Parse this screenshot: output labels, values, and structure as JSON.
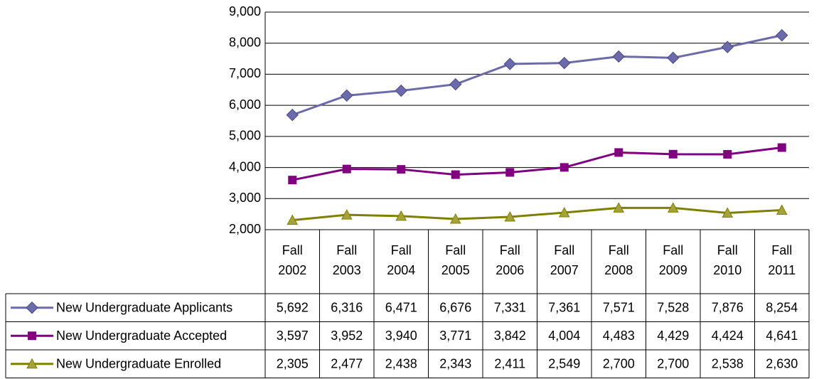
{
  "chart_data": {
    "type": "line",
    "categories": [
      "Fall 2002",
      "Fall 2003",
      "Fall 2004",
      "Fall 2005",
      "Fall 2006",
      "Fall 2007",
      "Fall 2008",
      "Fall 2009",
      "Fall 2010",
      "Fall 2011"
    ],
    "series": [
      {
        "name": "New Undergraduate Applicants",
        "color": "#6b6bab",
        "marker": "diamond",
        "values": [
          5692,
          6316,
          6471,
          6676,
          7331,
          7361,
          7571,
          7528,
          7876,
          8254
        ],
        "value_labels": [
          "5,692",
          "6,316",
          "6,471",
          "6,676",
          "7,331",
          "7,361",
          "7,571",
          "7,528",
          "7,876",
          "8,254"
        ]
      },
      {
        "name": "New Undergraduate Accepted",
        "color": "#800080",
        "marker": "square",
        "values": [
          3597,
          3952,
          3940,
          3771,
          3842,
          4004,
          4483,
          4429,
          4424,
          4641
        ],
        "value_labels": [
          "3,597",
          "3,952",
          "3,940",
          "3,771",
          "3,842",
          "4,004",
          "4,483",
          "4,429",
          "4,424",
          "4,641"
        ]
      },
      {
        "name": "New Undergraduate Enrolled",
        "color": "#808000",
        "marker": "triangle",
        "values": [
          2305,
          2477,
          2438,
          2343,
          2411,
          2549,
          2700,
          2700,
          2538,
          2630
        ],
        "value_labels": [
          "2,305",
          "2,477",
          "2,438",
          "2,343",
          "2,411",
          "2,549",
          "2,700",
          "2,700",
          "2,538",
          "2,630"
        ]
      }
    ],
    "ylim": [
      2000,
      9000
    ],
    "yticks": [
      {
        "value": 2000,
        "label": "2,000"
      },
      {
        "value": 3000,
        "label": "3,000"
      },
      {
        "value": 4000,
        "label": "4,000"
      },
      {
        "value": 5000,
        "label": "5,000"
      },
      {
        "value": 6000,
        "label": "6,000"
      },
      {
        "value": 7000,
        "label": "7,000"
      },
      {
        "value": 8000,
        "label": "8,000"
      },
      {
        "value": 9000,
        "label": "9,000"
      }
    ],
    "grid": true,
    "data_table": true
  }
}
